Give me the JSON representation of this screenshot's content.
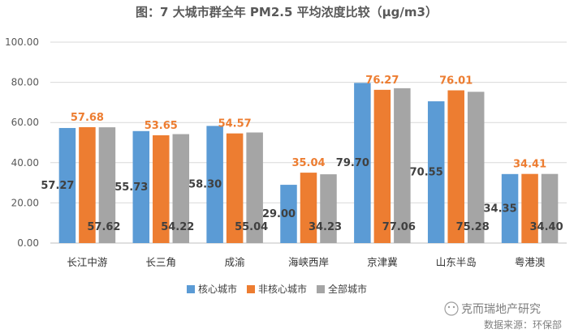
{
  "chart_data": {
    "type": "bar",
    "title": "图：7 大城市群全年 PM2.5 平均浓度比较（μg/m3）",
    "categories": [
      "长江中游",
      "长三角",
      "成渝",
      "海峡西岸",
      "京津冀",
      "山东半岛",
      "粤港澳"
    ],
    "series": [
      {
        "name": "核心城市",
        "color": "#5b9bd5",
        "values": [
          57.27,
          55.73,
          58.3,
          29.0,
          79.7,
          70.55,
          34.35
        ]
      },
      {
        "name": "非核心城市",
        "color": "#ed7d31",
        "values": [
          57.68,
          53.65,
          54.57,
          35.04,
          76.27,
          76.01,
          34.41
        ]
      },
      {
        "name": "全部城市",
        "color": "#a5a5a5",
        "values": [
          57.62,
          54.22,
          55.04,
          34.23,
          77.06,
          75.28,
          34.4
        ]
      }
    ],
    "value_labels": [
      [
        "57.27",
        "55.73",
        "58.30",
        "29.00",
        "79.70",
        "70.55",
        "34.35"
      ],
      [
        "57.68",
        "53.65",
        "54.57",
        "35.04",
        "76.27",
        "76.01",
        "34.41"
      ],
      [
        "57.62",
        "54.22",
        "55.04",
        "34.23",
        "77.06",
        "75.28",
        "34.40"
      ]
    ],
    "y_ticks": [
      "0.00",
      "20.00",
      "40.00",
      "60.00",
      "80.00",
      "100.00"
    ],
    "ylim": [
      0,
      100
    ],
    "grid": true,
    "legend": "bottom-center"
  },
  "watermark": "克而瑞地产研究",
  "source": "数据来源：环保部",
  "colors": {
    "grid": "#d9d9d9",
    "axis": "#bfbfbf",
    "label_orange": "#ed7d31"
  }
}
